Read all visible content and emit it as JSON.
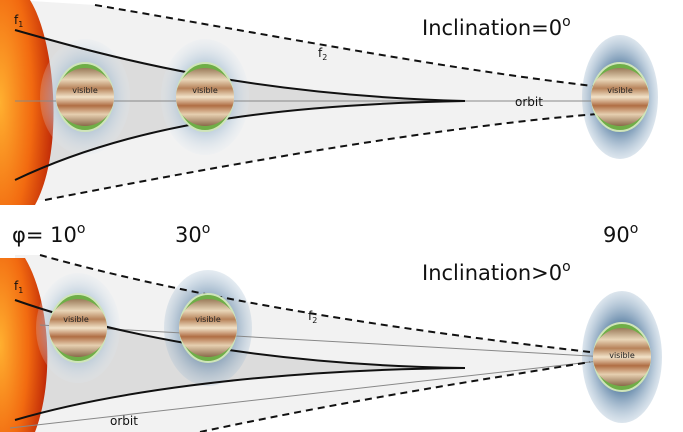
{
  "top_panel": {
    "title": "Inclination=0",
    "title_degree": "o",
    "f1": "f",
    "f1_index": "1",
    "f2": "f",
    "f2_index": "2",
    "planet_labels": [
      "visible",
      "visible",
      "visible"
    ],
    "orbit": "orbit"
  },
  "phase_labels": [
    {
      "prefix": "φ= ",
      "value": "10",
      "degree": "o"
    },
    {
      "value": "30",
      "degree": "o"
    },
    {
      "value": "90",
      "degree": "o"
    }
  ],
  "bottom_panel": {
    "title": "Inclination>0",
    "title_degree": "o",
    "f1": "f",
    "f1_index": "1",
    "f2": "f",
    "f2_index": "2",
    "planet_labels": [
      "visible",
      "visible",
      "visible"
    ],
    "orbit": "orbit"
  }
}
